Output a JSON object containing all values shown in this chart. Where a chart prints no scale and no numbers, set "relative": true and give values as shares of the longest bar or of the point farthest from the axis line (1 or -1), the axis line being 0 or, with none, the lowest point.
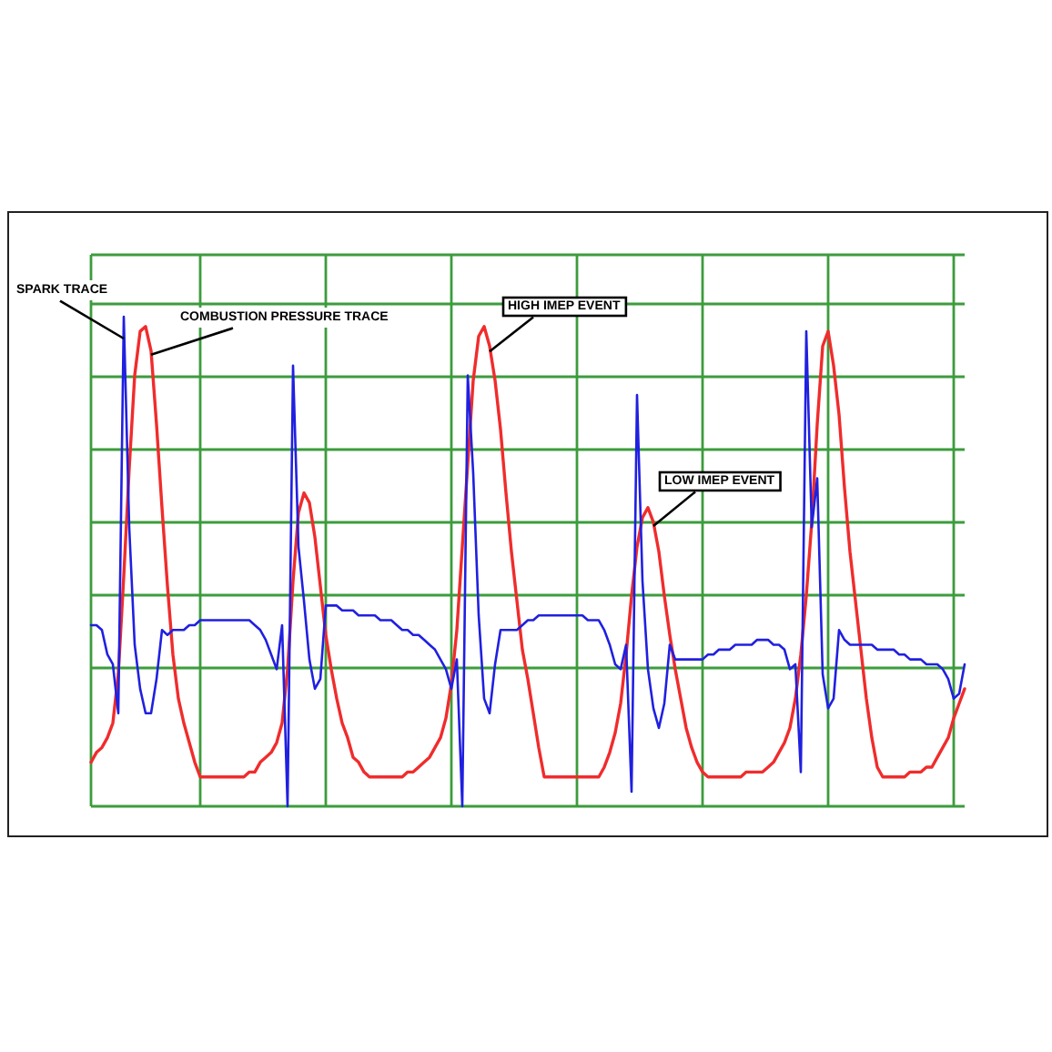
{
  "chart_data": {
    "type": "line",
    "relative": true,
    "grid": true,
    "categories": [
      null,
      null,
      null,
      null,
      null,
      null,
      null,
      null,
      null,
      null,
      null,
      null,
      null,
      null,
      null,
      null,
      null,
      null,
      null,
      null,
      null,
      null,
      null,
      null,
      null,
      null,
      null,
      null,
      null,
      null,
      null,
      null,
      null,
      null,
      null,
      null,
      null,
      null,
      null,
      null,
      null,
      null,
      null,
      null,
      null,
      null,
      null,
      null,
      null,
      null,
      null,
      null,
      null,
      null,
      null,
      null,
      null,
      null,
      null,
      null,
      null,
      null,
      null,
      null,
      null,
      null,
      null,
      null,
      null,
      null,
      null,
      null,
      null,
      null,
      null,
      null,
      null,
      null,
      null,
      null,
      null,
      null,
      null,
      null,
      null,
      null,
      null,
      null,
      null,
      null,
      null,
      null,
      null,
      null,
      null,
      null,
      null,
      null,
      null,
      null,
      null,
      null,
      null,
      null,
      null,
      null,
      null,
      null,
      null,
      null,
      null,
      null,
      null,
      null,
      null,
      null,
      null,
      null,
      null,
      null,
      null,
      null,
      null,
      null,
      null,
      null,
      null,
      null,
      null,
      null,
      null,
      null,
      null,
      null,
      null,
      null,
      null,
      null,
      null,
      null,
      null,
      null,
      null,
      null,
      null,
      null,
      null,
      null,
      null,
      null,
      null,
      null,
      null,
      null,
      null,
      null,
      null,
      null,
      null,
      null,
      null
    ],
    "series": [
      {
        "name": "SPARK TRACE",
        "color": "#2020e0",
        "values": [
          0.37,
          0.37,
          0.36,
          0.31,
          0.29,
          0.19,
          1.0,
          0.57,
          0.33,
          0.24,
          0.19,
          0.19,
          0.26,
          0.36,
          0.35,
          0.36,
          0.36,
          0.36,
          0.37,
          0.37,
          0.38,
          0.38,
          0.38,
          0.38,
          0.38,
          0.38,
          0.38,
          0.38,
          0.38,
          0.38,
          0.37,
          0.36,
          0.34,
          0.31,
          0.28,
          0.37,
          0.0,
          0.9,
          0.53,
          0.42,
          0.3,
          0.24,
          0.26,
          0.41,
          0.41,
          0.41,
          0.4,
          0.4,
          0.4,
          0.39,
          0.39,
          0.39,
          0.39,
          0.38,
          0.38,
          0.38,
          0.37,
          0.36,
          0.36,
          0.35,
          0.35,
          0.34,
          0.33,
          0.32,
          0.3,
          0.28,
          0.24,
          0.3,
          0.0,
          0.88,
          0.68,
          0.39,
          0.22,
          0.19,
          0.29,
          0.36,
          0.36,
          0.36,
          0.36,
          0.37,
          0.38,
          0.38,
          0.39,
          0.39,
          0.39,
          0.39,
          0.39,
          0.39,
          0.39,
          0.39,
          0.39,
          0.38,
          0.38,
          0.38,
          0.36,
          0.33,
          0.29,
          0.28,
          0.33,
          0.03,
          0.84,
          0.46,
          0.28,
          0.2,
          0.16,
          0.21,
          0.33,
          0.3,
          0.3,
          0.3,
          0.3,
          0.3,
          0.3,
          0.31,
          0.31,
          0.32,
          0.32,
          0.32,
          0.33,
          0.33,
          0.33,
          0.33,
          0.34,
          0.34,
          0.34,
          0.33,
          0.33,
          0.32,
          0.28,
          0.29,
          0.07,
          0.97,
          0.57,
          0.67,
          0.27,
          0.2,
          0.22,
          0.36,
          0.34,
          0.33,
          0.33,
          0.33,
          0.33,
          0.33,
          0.32,
          0.32,
          0.32,
          0.32,
          0.31,
          0.31,
          0.3,
          0.3,
          0.3,
          0.29,
          0.29,
          0.29,
          0.28,
          0.26,
          0.22,
          0.23,
          0.29
        ]
      },
      {
        "name": "COMBUSTION PRESSURE TRACE",
        "color": "#f02c2c",
        "values": [
          0.09,
          0.11,
          0.12,
          0.14,
          0.17,
          0.27,
          0.47,
          0.69,
          0.88,
          0.97,
          0.98,
          0.93,
          0.78,
          0.61,
          0.45,
          0.31,
          0.22,
          0.17,
          0.13,
          0.09,
          0.06,
          0.06,
          0.06,
          0.06,
          0.06,
          0.06,
          0.06,
          0.06,
          0.06,
          0.07,
          0.07,
          0.09,
          0.1,
          0.11,
          0.13,
          0.17,
          0.28,
          0.46,
          0.6,
          0.64,
          0.62,
          0.55,
          0.45,
          0.35,
          0.28,
          0.22,
          0.17,
          0.14,
          0.1,
          0.09,
          0.07,
          0.06,
          0.06,
          0.06,
          0.06,
          0.06,
          0.06,
          0.06,
          0.07,
          0.07,
          0.08,
          0.09,
          0.1,
          0.12,
          0.14,
          0.18,
          0.25,
          0.36,
          0.53,
          0.7,
          0.87,
          0.96,
          0.98,
          0.94,
          0.87,
          0.77,
          0.64,
          0.52,
          0.42,
          0.32,
          0.26,
          0.19,
          0.12,
          0.06,
          0.06,
          0.06,
          0.06,
          0.06,
          0.06,
          0.06,
          0.06,
          0.06,
          0.06,
          0.06,
          0.08,
          0.11,
          0.15,
          0.21,
          0.31,
          0.43,
          0.53,
          0.59,
          0.61,
          0.58,
          0.52,
          0.43,
          0.35,
          0.28,
          0.22,
          0.16,
          0.12,
          0.09,
          0.07,
          0.06,
          0.06,
          0.06,
          0.06,
          0.06,
          0.06,
          0.06,
          0.07,
          0.07,
          0.07,
          0.07,
          0.08,
          0.09,
          0.11,
          0.13,
          0.16,
          0.22,
          0.31,
          0.43,
          0.58,
          0.78,
          0.94,
          0.97,
          0.9,
          0.8,
          0.65,
          0.52,
          0.42,
          0.32,
          0.22,
          0.14,
          0.08,
          0.06,
          0.06,
          0.06,
          0.06,
          0.06,
          0.07,
          0.07,
          0.07,
          0.08,
          0.08,
          0.1,
          0.12,
          0.14,
          0.18,
          0.21,
          0.24
        ]
      }
    ],
    "annotations": [
      "HIGH IMEP EVENT",
      "LOW IMEP EVENT"
    ]
  }
}
